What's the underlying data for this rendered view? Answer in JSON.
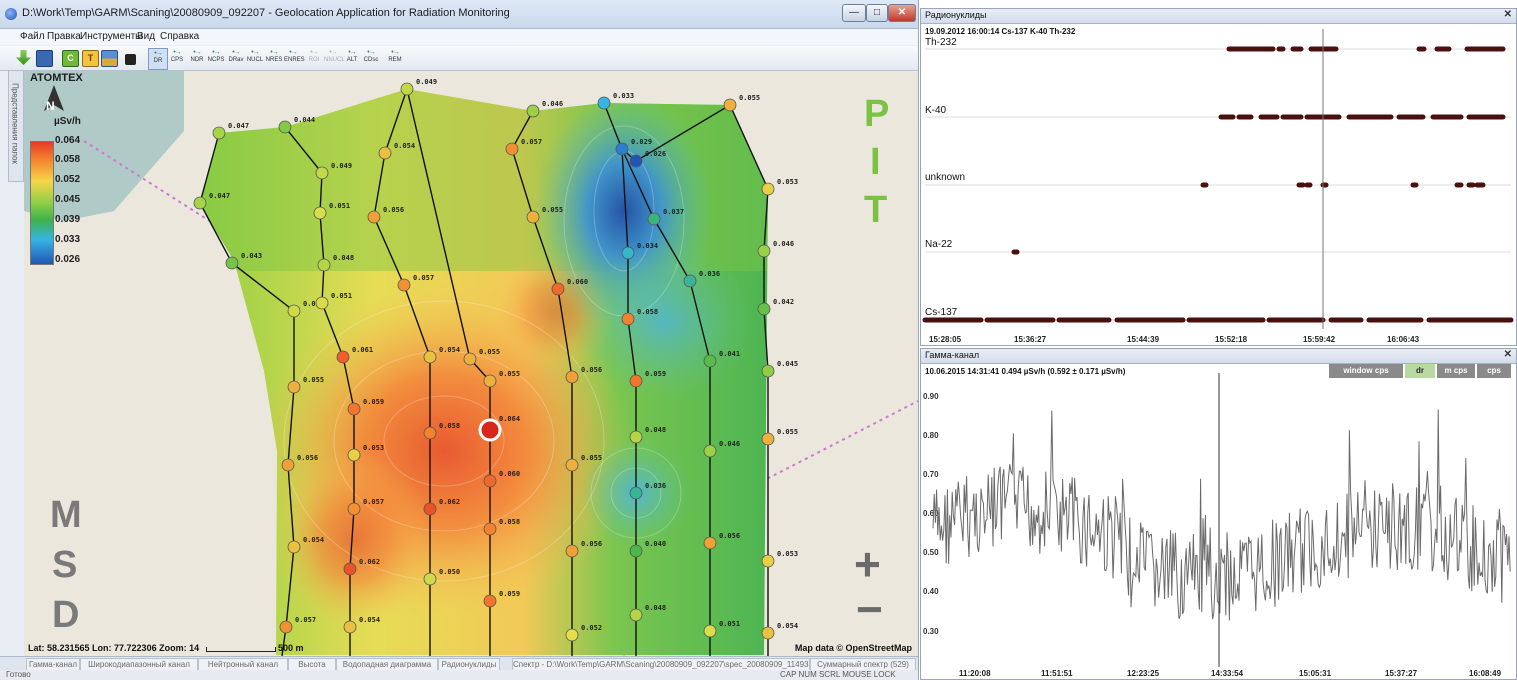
{
  "main_window": {
    "title": "D:\\Work\\Temp\\GARM\\Scaning\\20080909_092207 - Geolocation Application for Radiation Monitoring",
    "caption_buttons": {
      "minimize": "—",
      "maximize": "□",
      "close": "✕"
    }
  },
  "menu": [
    "Файл",
    "Правка",
    "Инструменты",
    "Вид",
    "Справка"
  ],
  "toolbar": {
    "icons": [
      "arrow-down-icon",
      "save-icon",
      "c-icon",
      "t-icon",
      "landscape-icon",
      "lock-icon"
    ],
    "tools": [
      "DR",
      "CPS",
      "NDR",
      "NCPS",
      "DRav",
      "NUCL",
      "NRES",
      "ENRES",
      "ROI",
      "NNUCL",
      "ALT",
      "CDsc",
      "REM"
    ]
  },
  "left_side_tab": "Представления папок",
  "legend": {
    "brand": "ATOMTEX",
    "north": "N",
    "unit": "µSv/h",
    "ticks": [
      "0.064",
      "0.058",
      "0.052",
      "0.045",
      "0.039",
      "0.033",
      "0.026"
    ]
  },
  "map_labels": {
    "pit": [
      "P",
      "I",
      "T"
    ],
    "msd": [
      "M",
      "S",
      "D"
    ],
    "zoom_in": "+",
    "zoom_out": "−"
  },
  "points": [
    {
      "v": "0.049"
    },
    {
      "v": "0.047"
    },
    {
      "v": "0.044"
    },
    {
      "v": "0.046"
    },
    {
      "v": "0.033"
    },
    {
      "v": "0.055"
    },
    {
      "v": "0.049"
    },
    {
      "v": "0.054"
    },
    {
      "v": "0.057"
    },
    {
      "v": "0.029"
    },
    {
      "v": "0.047"
    },
    {
      "v": "0.053"
    },
    {
      "v": "0.051"
    },
    {
      "v": "0.056"
    },
    {
      "v": "0.055"
    },
    {
      "v": "0.026"
    },
    {
      "v": "0.037"
    },
    {
      "v": "0.043"
    },
    {
      "v": "0.048"
    },
    {
      "v": "0.034"
    },
    {
      "v": "0.046"
    },
    {
      "v": "0.057"
    },
    {
      "v": "0.060"
    },
    {
      "v": "0.036"
    },
    {
      "v": "0.050"
    },
    {
      "v": "0.051"
    },
    {
      "v": "0.058"
    },
    {
      "v": "0.042"
    },
    {
      "v": "0.061"
    },
    {
      "v": "0.054"
    },
    {
      "v": "0.055"
    },
    {
      "v": "0.041"
    },
    {
      "v": "0.055"
    },
    {
      "v": "0.055"
    },
    {
      "v": "0.056"
    },
    {
      "v": "0.059"
    },
    {
      "v": "0.045"
    },
    {
      "v": "0.059"
    },
    {
      "v": "0.058"
    },
    {
      "v": "0.064"
    },
    {
      "v": "0.048"
    },
    {
      "v": "0.046"
    },
    {
      "v": "0.056"
    },
    {
      "v": "0.053"
    },
    {
      "v": "0.060"
    },
    {
      "v": "0.055"
    },
    {
      "v": "0.036"
    },
    {
      "v": "0.055"
    },
    {
      "v": "0.057"
    },
    {
      "v": "0.062"
    },
    {
      "v": "0.058"
    },
    {
      "v": "0.054"
    },
    {
      "v": "0.056"
    },
    {
      "v": "0.040"
    },
    {
      "v": "0.056"
    },
    {
      "v": "0.053"
    },
    {
      "v": "0.062"
    },
    {
      "v": "0.050"
    },
    {
      "v": "0.059"
    },
    {
      "v": "0.057"
    },
    {
      "v": "0.054"
    },
    {
      "v": "0.052"
    },
    {
      "v": "0.048"
    },
    {
      "v": "0.051"
    },
    {
      "v": "0.054"
    }
  ],
  "map_status": {
    "coords": "Lat: 58.231565   Lon: 77.722306   Zoom: 14",
    "scale": "500 m",
    "attribution": "Map data © OpenStreetMap"
  },
  "bottom_tabs": [
    "Гамма-канал",
    "Широкодиапазонный канал",
    "Нейтронный канал",
    "Высота",
    "Водопадная диаграмма",
    "Радионуклиды",
    "Спектр - D:\\Work\\Temp\\GARM\\Scaning\\20080909_092207\\spec_20080909_114933.spe",
    "Суммарный спектр (529)"
  ],
  "statusbar": {
    "left": "Готово",
    "right": "CAP  NUM  SCRL  MOUSE LOCK"
  },
  "nuclides_panel": {
    "title": "Радионуклиды",
    "close": "✕",
    "info": "19.09.2012 16:00:14    Cs-137 K-40 Th-232",
    "rows": [
      "Th-232",
      "K-40",
      "unknown",
      "Na-22",
      "Cs-137"
    ],
    "times": [
      "15:28:05",
      "15:36:27",
      "15:44:39",
      "15:52:18",
      "15:59:42",
      "16:06:43"
    ]
  },
  "gamma_panel": {
    "title": "Гамма-канал",
    "close": "✕",
    "info": "10.06.2015 14:31:41    0.494 µSv/h    (0.592 ± 0.171 µSv/h)",
    "buttons": [
      "window cps",
      "dr",
      "m cps",
      "cps"
    ],
    "y_ticks": [
      "0.90",
      "0.80",
      "0.70",
      "0.60",
      "0.50",
      "0.40",
      "0.30"
    ],
    "times": [
      "11:20:08",
      "11:51:51",
      "12:23:25",
      "14:33:54",
      "15:05:31",
      "15:37:27",
      "16:08:49"
    ]
  },
  "colors": {
    "accent": "#3a6fb0",
    "pit": "#7cc242",
    "track": "#4a0f0f",
    "hot": "#e53a26",
    "cold": "#2355b5"
  }
}
